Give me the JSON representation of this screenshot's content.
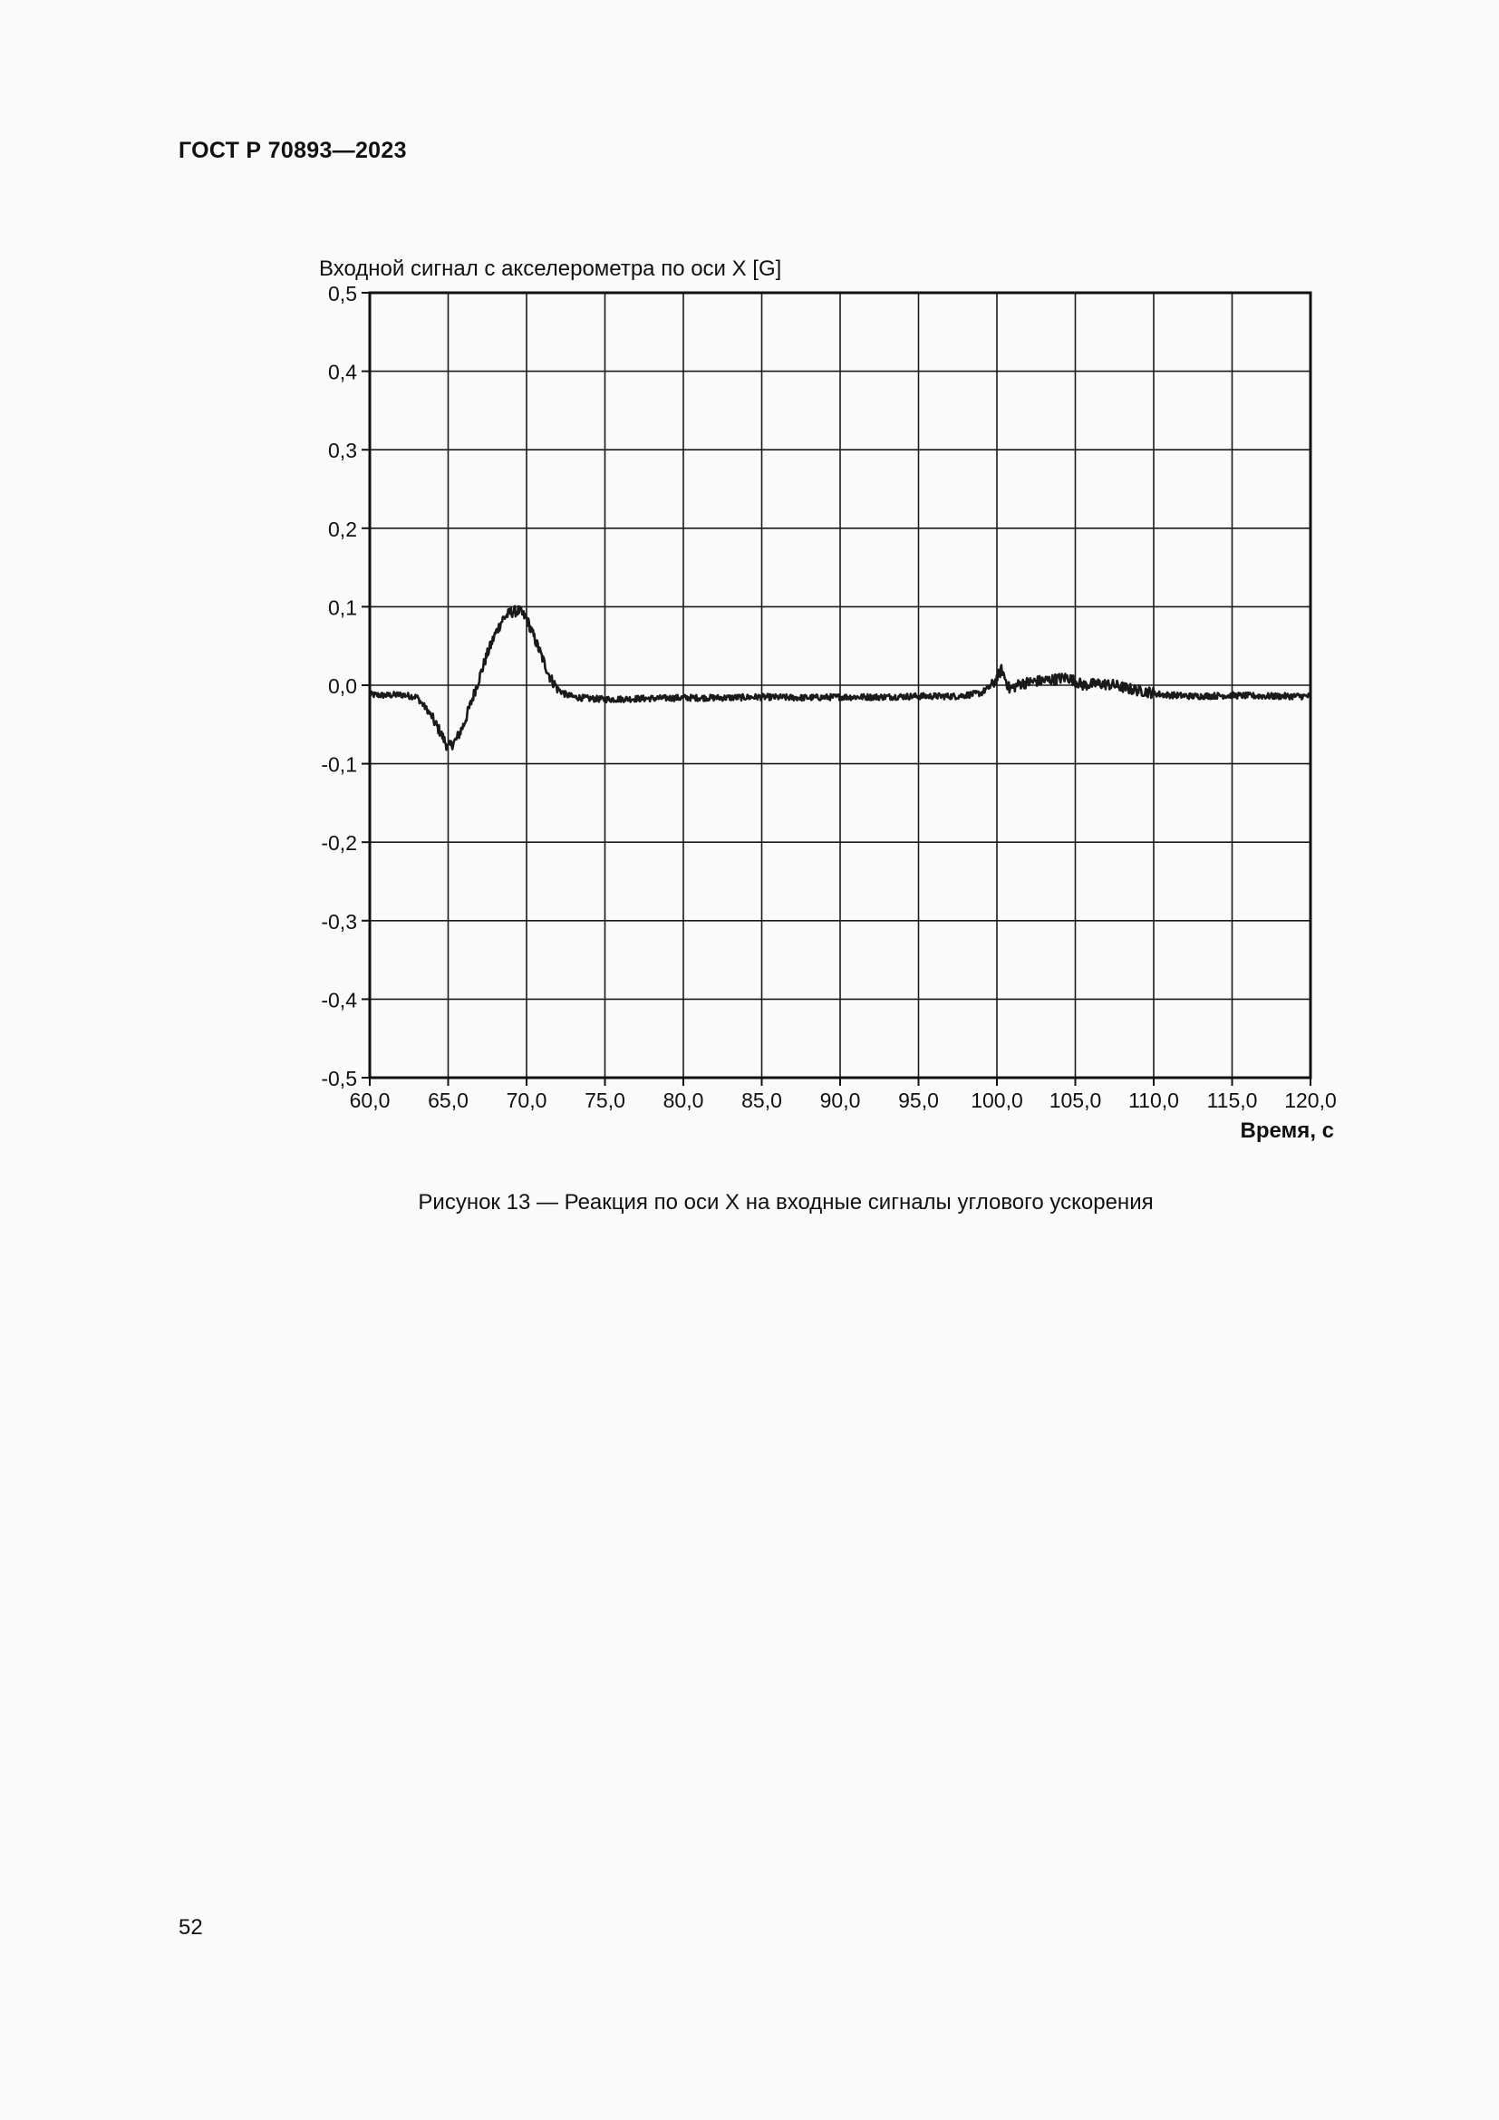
{
  "header": {
    "doc_code": "ГОСТ Р 70893—2023"
  },
  "figure": {
    "caption": "Рисунок 13 — Реакция по оси X на входные сигналы углового ускорения"
  },
  "page": {
    "number": "52"
  },
  "chart_data": {
    "type": "line",
    "title": "Входной сигнал с акселерометра по оси X [G]",
    "xlabel": "Время, с",
    "ylabel": "",
    "xlim": [
      60.0,
      120.0
    ],
    "ylim": [
      -0.5,
      0.5
    ],
    "grid": true,
    "x_ticks": [
      "60,0",
      "65,0",
      "70,0",
      "75,0",
      "80,0",
      "85,0",
      "90,0",
      "95,0",
      "100,0",
      "105,0",
      "110,0",
      "115,0",
      "120,0"
    ],
    "y_ticks": [
      "0,5",
      "0,4",
      "0,3",
      "0,2",
      "0,1",
      "0,0",
      "-0,1",
      "-0,2",
      "-0,3",
      "-0,4",
      "-0,5"
    ],
    "series": [
      {
        "color": "#1a1a1a",
        "x": [
          60.0,
          61.0,
          62.0,
          63.0,
          63.8,
          64.5,
          65.0,
          65.5,
          66.0,
          66.5,
          67.0,
          67.5,
          68.0,
          68.5,
          69.0,
          69.5,
          70.0,
          70.5,
          71.0,
          71.5,
          72.0,
          72.5,
          73.0,
          74.0,
          75.0,
          77.5,
          80.0,
          82.5,
          85.0,
          87.5,
          90.0,
          92.5,
          95.0,
          97.5,
          99.0,
          99.8,
          100.3,
          100.8,
          101.5,
          102.5,
          103.5,
          104.5,
          105.5,
          106.5,
          107.5,
          108.5,
          109.5,
          110.5,
          112.5,
          115.0,
          117.5,
          120.0
        ],
        "y": [
          -0.012,
          -0.013,
          -0.012,
          -0.015,
          -0.035,
          -0.06,
          -0.08,
          -0.07,
          -0.05,
          -0.02,
          0.01,
          0.04,
          0.065,
          0.085,
          0.093,
          0.095,
          0.085,
          0.06,
          0.035,
          0.01,
          -0.005,
          -0.012,
          -0.015,
          -0.017,
          -0.018,
          -0.017,
          -0.016,
          -0.016,
          -0.015,
          -0.016,
          -0.015,
          -0.015,
          -0.014,
          -0.014,
          -0.01,
          0.002,
          0.02,
          -0.005,
          0.002,
          0.005,
          0.007,
          0.01,
          0.0,
          0.002,
          0.0,
          -0.005,
          -0.008,
          -0.012,
          -0.014,
          -0.013,
          -0.014,
          -0.014
        ]
      }
    ]
  }
}
